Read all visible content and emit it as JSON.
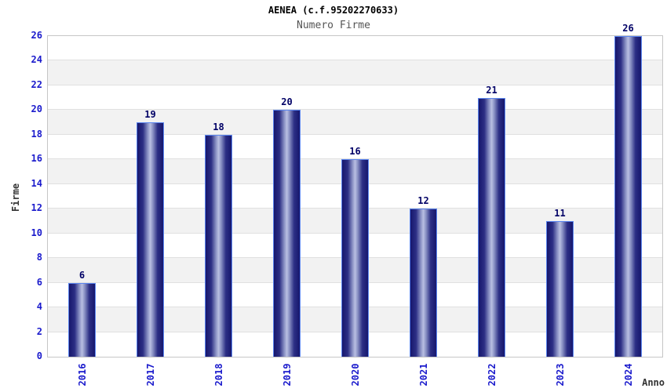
{
  "chart_data": {
    "type": "bar",
    "title": "AENEA (c.f.95202270633)",
    "subtitle": "Numero Firme",
    "xlabel": "Anno",
    "ylabel": "Firme",
    "categories": [
      "2016",
      "2017",
      "2018",
      "2019",
      "2020",
      "2021",
      "2022",
      "2023",
      "2024"
    ],
    "values": [
      6,
      19,
      18,
      20,
      16,
      12,
      21,
      11,
      26
    ],
    "ylim": [
      0,
      26
    ],
    "ytick_step": 2,
    "yticks": [
      0,
      2,
      4,
      6,
      8,
      10,
      12,
      14,
      16,
      18,
      20,
      22,
      24,
      26
    ],
    "grid": true,
    "alternating_bands": true,
    "bar_value_labels_shown": true,
    "legend": "none"
  },
  "colors": {
    "tick_label": "#1a1acc",
    "value_label": "#000066",
    "bar_edge_dark": "#17176d",
    "bar_center_light": "#b9bfe2",
    "bar_border": "#5b86f0",
    "grid_line": "#e0e0e0",
    "band_gray": "#f2f2f2",
    "plot_border": "#c6c6c6",
    "title_color": "#000000",
    "subtitle_color": "#555555",
    "axis_title_color": "#333333",
    "background": "#ffffff"
  }
}
